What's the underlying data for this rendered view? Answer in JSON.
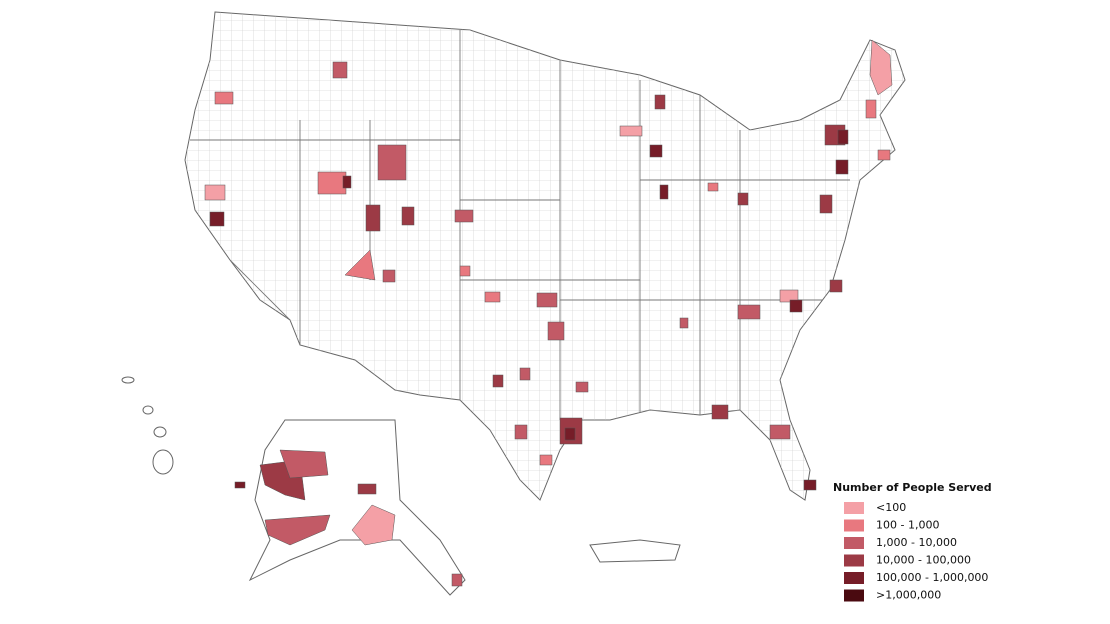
{
  "legend": {
    "title": "Number of People Served",
    "items": [
      {
        "label": "<100",
        "color": "#f4a0a6"
      },
      {
        "label": "100 - 1,000",
        "color": "#e8787f"
      },
      {
        "label": "1,000 - 10,000",
        "color": "#c25a66"
      },
      {
        "label": "10,000 - 100,000",
        "color": "#9c3a45"
      },
      {
        "label": "100,000 - 1,000,000",
        "color": "#761d28"
      },
      {
        "label": ">1,000,000",
        "color": "#4a0a10"
      }
    ]
  }
}
